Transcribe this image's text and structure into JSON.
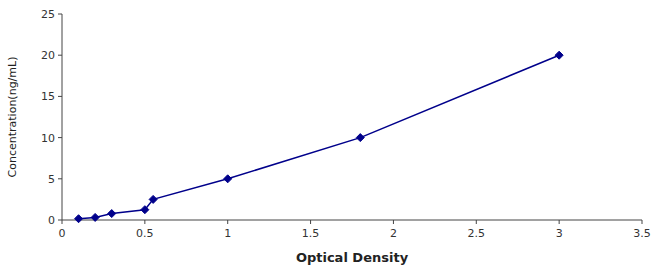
{
  "chart_data": {
    "type": "line",
    "x": [
      0.1,
      0.2,
      0.3,
      0.5,
      0.55,
      1.0,
      1.8,
      3.0
    ],
    "values": [
      0.156,
      0.312,
      0.78,
      1.25,
      2.5,
      5.0,
      10.0,
      20.0
    ],
    "color": "#00008B",
    "marker": "diamond",
    "line_style": "solid",
    "xlabel": "Optical Density",
    "ylabel": "Concentration(ng/mL)",
    "xlim": [
      0,
      3.5
    ],
    "ylim": [
      0,
      25
    ],
    "xticks": [
      0,
      0.5,
      1,
      1.5,
      2,
      2.5,
      3,
      3.5
    ],
    "yticks": [
      0,
      5,
      10,
      15,
      20,
      25
    ],
    "grid": false
  }
}
